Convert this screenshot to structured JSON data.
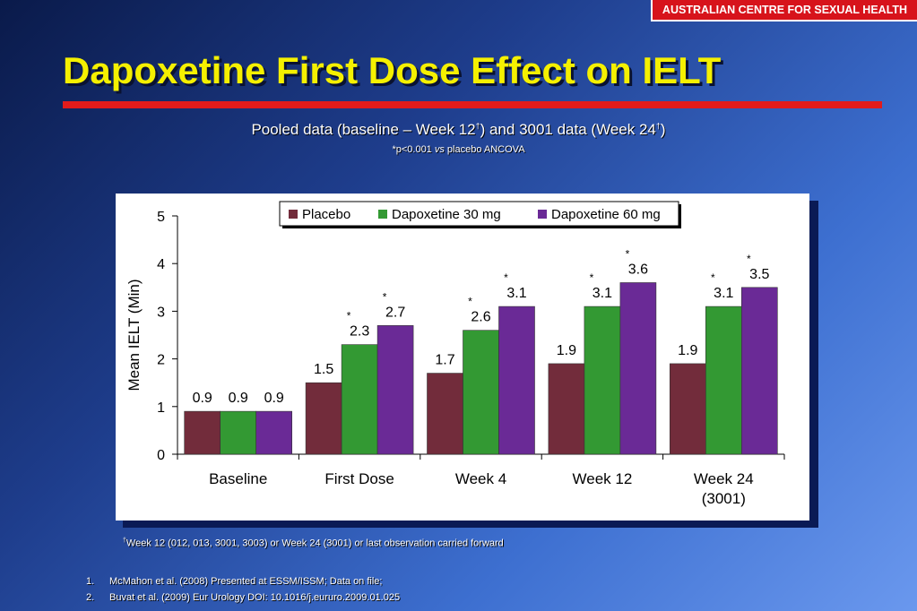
{
  "header": {
    "org": "AUSTRALIAN CENTRE FOR SEXUAL HEALTH",
    "title": "Dapoxetine First Dose Effect on IELT",
    "subtitle_prefix": "Pooled data (baseline – Week 12",
    "subtitle_mark1": "†",
    "subtitle_middle": ") and 3001 data (Week 24",
    "subtitle_mark2": "†",
    "subtitle_suffix": ")",
    "note_prefix": "*p<0.001 ",
    "note_italic": "vs",
    "note_suffix": " placebo ANCOVA"
  },
  "colors": {
    "title": "#f5f000",
    "accent_rule": "#e21b1b",
    "badge": "#d7131b"
  },
  "chart_data": {
    "type": "bar",
    "categories": [
      "Baseline",
      "First Dose",
      "Week 4",
      "Week 12",
      "Week 24"
    ],
    "category_sublabels": [
      "",
      "",
      "",
      "",
      "(3001)"
    ],
    "ylabel": "Mean IELT (Min)",
    "xlabel": "",
    "ylim": [
      0,
      5
    ],
    "yticks": [
      0,
      1,
      2,
      3,
      4,
      5
    ],
    "grid": false,
    "legend_position": "top",
    "series": [
      {
        "name": "Placebo",
        "color": "#722c3b",
        "values": [
          0.9,
          1.5,
          1.7,
          1.9,
          1.9
        ],
        "labels": [
          "0.9",
          "1.5",
          "1.7",
          "1.9",
          "1.9"
        ],
        "significant": [
          false,
          false,
          false,
          false,
          false
        ]
      },
      {
        "name": "Dapoxetine 30 mg",
        "color": "#339933",
        "values": [
          0.9,
          2.3,
          2.6,
          3.1,
          3.1
        ],
        "labels": [
          "0.9",
          "2.3",
          "2.6",
          "3.1",
          "3.1"
        ],
        "significant": [
          false,
          true,
          true,
          true,
          true
        ]
      },
      {
        "name": "Dapoxetine 60 mg",
        "color": "#6a2a96",
        "values": [
          0.9,
          2.7,
          3.1,
          3.6,
          3.5
        ],
        "labels": [
          "0.9",
          "2.7",
          "3.1",
          "3.6",
          "3.5"
        ],
        "significant": [
          false,
          true,
          true,
          true,
          true
        ]
      }
    ],
    "significance_marker": "*"
  },
  "footnote": {
    "mark": "†",
    "text": "Week 12 (012, 013, 3001, 3003) or Week 24 (3001) or last observation carried forward"
  },
  "references": [
    {
      "num": "1.",
      "text": "McMahon et al. (2008) Presented at ESSM/ISSM; Data on file;"
    },
    {
      "num": "2.",
      "text": "Buvat et al. (2009) Eur Urology DOI: 10.1016/j.eururo.2009.01.025"
    }
  ]
}
